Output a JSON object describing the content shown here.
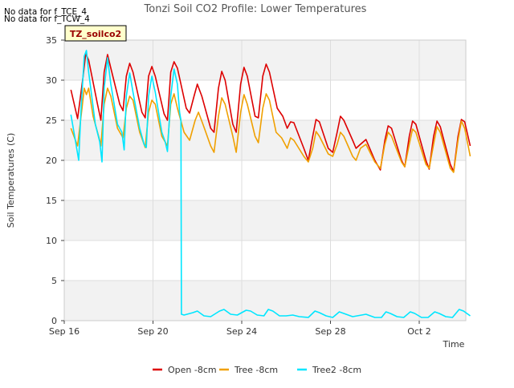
{
  "no_data_notes": [
    "No data for f_TCE_4",
    "No data for f_TCW_4"
  ],
  "site_tag": "TZ_soilco2",
  "chart_data": {
    "type": "line",
    "title": "Tonzi Soil CO2 Profile: Lower Temperatures",
    "xlabel": "Time",
    "ylabel": "Soil Temperatures (C)",
    "ylim": [
      0,
      35
    ],
    "xlim_days": [
      0,
      18.1
    ],
    "x_ticks": [
      {
        "day": 0,
        "label": "Sep 16"
      },
      {
        "day": 4,
        "label": "Sep 20"
      },
      {
        "day": 8,
        "label": "Sep 24"
      },
      {
        "day": 12,
        "label": "Sep 28"
      },
      {
        "day": 16,
        "label": "Oct 2"
      }
    ],
    "y_ticks": [
      0,
      5,
      10,
      15,
      20,
      25,
      30,
      35
    ],
    "grid": true,
    "legend_position": "bottom",
    "series": [
      {
        "name": "Open -8cm",
        "color": "#dd0000",
        "points": [
          [
            0.3,
            28.8
          ],
          [
            0.6,
            25.2
          ],
          [
            0.85,
            30.5
          ],
          [
            0.97,
            33.3
          ],
          [
            1.1,
            32.5
          ],
          [
            1.5,
            27.0
          ],
          [
            1.65,
            25.0
          ],
          [
            1.8,
            31.0
          ],
          [
            1.95,
            33.2
          ],
          [
            2.1,
            31.5
          ],
          [
            2.5,
            27.0
          ],
          [
            2.65,
            26.2
          ],
          [
            2.8,
            30.5
          ],
          [
            2.95,
            32.1
          ],
          [
            3.1,
            31.0
          ],
          [
            3.5,
            26.0
          ],
          [
            3.65,
            25.3
          ],
          [
            3.8,
            30.5
          ],
          [
            3.95,
            31.7
          ],
          [
            4.1,
            30.5
          ],
          [
            4.5,
            25.8
          ],
          [
            4.65,
            25.0
          ],
          [
            4.8,
            31.0
          ],
          [
            4.95,
            32.3
          ],
          [
            5.1,
            31.5
          ],
          [
            5.5,
            26.5
          ],
          [
            5.65,
            25.9
          ],
          [
            5.85,
            28.0
          ],
          [
            6.0,
            29.5
          ],
          [
            6.2,
            28.0
          ],
          [
            6.6,
            24.0
          ],
          [
            6.75,
            23.5
          ],
          [
            6.95,
            29.0
          ],
          [
            7.1,
            31.1
          ],
          [
            7.25,
            30.0
          ],
          [
            7.6,
            24.5
          ],
          [
            7.75,
            23.5
          ],
          [
            7.95,
            29.5
          ],
          [
            8.1,
            31.6
          ],
          [
            8.25,
            30.5
          ],
          [
            8.6,
            25.5
          ],
          [
            8.75,
            25.3
          ],
          [
            8.95,
            30.5
          ],
          [
            9.1,
            32.0
          ],
          [
            9.25,
            31.0
          ],
          [
            9.6,
            26.5
          ],
          [
            9.85,
            25.5
          ],
          [
            10.05,
            24.0
          ],
          [
            10.2,
            24.8
          ],
          [
            10.35,
            24.7
          ],
          [
            10.8,
            21.5
          ],
          [
            11.0,
            20.0
          ],
          [
            11.2,
            23.0
          ],
          [
            11.35,
            25.1
          ],
          [
            11.5,
            24.8
          ],
          [
            11.9,
            21.5
          ],
          [
            12.1,
            21.0
          ],
          [
            12.3,
            23.5
          ],
          [
            12.45,
            25.5
          ],
          [
            12.6,
            25.0
          ],
          [
            13.0,
            22.5
          ],
          [
            13.15,
            21.5
          ],
          [
            13.35,
            22.0
          ],
          [
            13.6,
            22.6
          ],
          [
            14.0,
            20.0
          ],
          [
            14.25,
            18.8
          ],
          [
            14.45,
            22.5
          ],
          [
            14.6,
            24.3
          ],
          [
            14.75,
            24.0
          ],
          [
            15.2,
            20.0
          ],
          [
            15.35,
            19.2
          ],
          [
            15.55,
            23.0
          ],
          [
            15.7,
            24.9
          ],
          [
            15.85,
            24.5
          ],
          [
            16.3,
            20.0
          ],
          [
            16.45,
            18.9
          ],
          [
            16.65,
            23.0
          ],
          [
            16.8,
            24.9
          ],
          [
            16.95,
            24.2
          ],
          [
            17.4,
            19.5
          ],
          [
            17.55,
            18.6
          ],
          [
            17.75,
            23.0
          ],
          [
            17.9,
            25.1
          ],
          [
            18.05,
            24.8
          ],
          [
            18.3,
            21.8
          ]
        ]
      },
      {
        "name": "Tree -8cm",
        "color": "#f0a000",
        "points": [
          [
            0.3,
            24.0
          ],
          [
            0.6,
            21.8
          ],
          [
            0.8,
            26.5
          ],
          [
            0.9,
            29.0
          ],
          [
            1.0,
            28.2
          ],
          [
            1.1,
            29.0
          ],
          [
            1.3,
            25.5
          ],
          [
            1.6,
            22.5
          ],
          [
            1.65,
            21.8
          ],
          [
            1.8,
            27.0
          ],
          [
            1.95,
            29.0
          ],
          [
            2.1,
            28.0
          ],
          [
            2.4,
            24.0
          ],
          [
            2.65,
            22.8
          ],
          [
            2.8,
            26.5
          ],
          [
            2.95,
            28.0
          ],
          [
            3.1,
            27.5
          ],
          [
            3.4,
            23.5
          ],
          [
            3.65,
            21.6
          ],
          [
            3.8,
            26.0
          ],
          [
            3.95,
            27.5
          ],
          [
            4.1,
            27.0
          ],
          [
            4.4,
            23.0
          ],
          [
            4.65,
            21.8
          ],
          [
            4.8,
            27.0
          ],
          [
            4.95,
            28.3
          ],
          [
            5.1,
            26.5
          ],
          [
            5.4,
            23.5
          ],
          [
            5.65,
            22.5
          ],
          [
            5.9,
            25.0
          ],
          [
            6.05,
            26.0
          ],
          [
            6.25,
            24.5
          ],
          [
            6.6,
            21.8
          ],
          [
            6.75,
            21.0
          ],
          [
            6.95,
            25.5
          ],
          [
            7.1,
            27.8
          ],
          [
            7.25,
            27.0
          ],
          [
            7.6,
            23.0
          ],
          [
            7.75,
            21.0
          ],
          [
            7.95,
            26.0
          ],
          [
            8.1,
            28.2
          ],
          [
            8.25,
            27.0
          ],
          [
            8.6,
            23.0
          ],
          [
            8.75,
            22.2
          ],
          [
            8.95,
            26.5
          ],
          [
            9.1,
            28.3
          ],
          [
            9.25,
            27.5
          ],
          [
            9.55,
            23.5
          ],
          [
            9.8,
            22.8
          ],
          [
            10.05,
            21.5
          ],
          [
            10.2,
            22.8
          ],
          [
            10.35,
            22.5
          ],
          [
            10.8,
            20.5
          ],
          [
            11.0,
            19.8
          ],
          [
            11.2,
            21.5
          ],
          [
            11.35,
            23.6
          ],
          [
            11.5,
            23.0
          ],
          [
            11.9,
            20.8
          ],
          [
            12.1,
            20.5
          ],
          [
            12.3,
            22.0
          ],
          [
            12.45,
            23.5
          ],
          [
            12.6,
            23.0
          ],
          [
            13.0,
            20.5
          ],
          [
            13.15,
            20.0
          ],
          [
            13.35,
            21.5
          ],
          [
            13.6,
            22.0
          ],
          [
            14.0,
            19.8
          ],
          [
            14.25,
            19.0
          ],
          [
            14.45,
            22.0
          ],
          [
            14.6,
            23.5
          ],
          [
            14.75,
            23.0
          ],
          [
            15.2,
            19.8
          ],
          [
            15.35,
            19.2
          ],
          [
            15.55,
            22.0
          ],
          [
            15.7,
            23.9
          ],
          [
            15.85,
            23.5
          ],
          [
            16.3,
            19.5
          ],
          [
            16.45,
            19.0
          ],
          [
            16.65,
            22.0
          ],
          [
            16.8,
            24.2
          ],
          [
            16.95,
            23.5
          ],
          [
            17.4,
            19.0
          ],
          [
            17.55,
            18.5
          ],
          [
            17.75,
            22.5
          ],
          [
            17.9,
            24.9
          ],
          [
            18.05,
            24.0
          ],
          [
            18.3,
            20.5
          ]
        ]
      },
      {
        "name": "Tree2 -8cm",
        "color": "#00e6ff",
        "points": [
          [
            0.3,
            25.7
          ],
          [
            0.5,
            22.5
          ],
          [
            0.65,
            20.0
          ],
          [
            0.75,
            26.0
          ],
          [
            0.9,
            33.0
          ],
          [
            1.0,
            33.7
          ],
          [
            1.1,
            31.0
          ],
          [
            1.4,
            24.5
          ],
          [
            1.6,
            22.3
          ],
          [
            1.7,
            19.8
          ],
          [
            1.8,
            29.0
          ],
          [
            1.95,
            32.8
          ],
          [
            2.1,
            29.5
          ],
          [
            2.4,
            24.5
          ],
          [
            2.6,
            23.5
          ],
          [
            2.7,
            21.3
          ],
          [
            2.8,
            28.0
          ],
          [
            2.95,
            30.9
          ],
          [
            3.1,
            28.5
          ],
          [
            3.4,
            24.0
          ],
          [
            3.6,
            22.0
          ],
          [
            3.7,
            21.6
          ],
          [
            3.8,
            28.0
          ],
          [
            3.95,
            30.5
          ],
          [
            4.1,
            28.5
          ],
          [
            4.4,
            23.5
          ],
          [
            4.55,
            22.3
          ],
          [
            4.65,
            21.1
          ],
          [
            4.8,
            28.0
          ],
          [
            4.95,
            31.4
          ],
          [
            5.1,
            29.5
          ],
          [
            5.2,
            26.0
          ],
          [
            5.26,
            25.0
          ],
          [
            5.28,
            0.8
          ],
          [
            5.4,
            0.7
          ],
          [
            5.8,
            1.0
          ],
          [
            6.0,
            1.2
          ],
          [
            6.3,
            0.6
          ],
          [
            6.6,
            0.5
          ],
          [
            7.0,
            1.2
          ],
          [
            7.2,
            1.4
          ],
          [
            7.5,
            0.8
          ],
          [
            7.8,
            0.7
          ],
          [
            8.2,
            1.3
          ],
          [
            8.4,
            1.2
          ],
          [
            8.7,
            0.7
          ],
          [
            9.0,
            0.6
          ],
          [
            9.2,
            1.4
          ],
          [
            9.4,
            1.2
          ],
          [
            9.7,
            0.6
          ],
          [
            10.0,
            0.6
          ],
          [
            10.3,
            0.7
          ],
          [
            10.6,
            0.5
          ],
          [
            11.0,
            0.4
          ],
          [
            11.3,
            1.2
          ],
          [
            11.5,
            1.0
          ],
          [
            11.8,
            0.6
          ],
          [
            12.1,
            0.4
          ],
          [
            12.4,
            1.1
          ],
          [
            12.6,
            0.9
          ],
          [
            13.0,
            0.5
          ],
          [
            13.4,
            0.7
          ],
          [
            13.6,
            0.8
          ],
          [
            14.0,
            0.4
          ],
          [
            14.3,
            0.4
          ],
          [
            14.5,
            1.1
          ],
          [
            14.7,
            0.9
          ],
          [
            15.0,
            0.5
          ],
          [
            15.3,
            0.4
          ],
          [
            15.6,
            1.1
          ],
          [
            15.8,
            0.9
          ],
          [
            16.1,
            0.4
          ],
          [
            16.4,
            0.4
          ],
          [
            16.7,
            1.1
          ],
          [
            16.9,
            0.9
          ],
          [
            17.2,
            0.5
          ],
          [
            17.5,
            0.4
          ],
          [
            17.8,
            1.4
          ],
          [
            18.0,
            1.2
          ],
          [
            18.3,
            0.6
          ]
        ]
      }
    ]
  }
}
